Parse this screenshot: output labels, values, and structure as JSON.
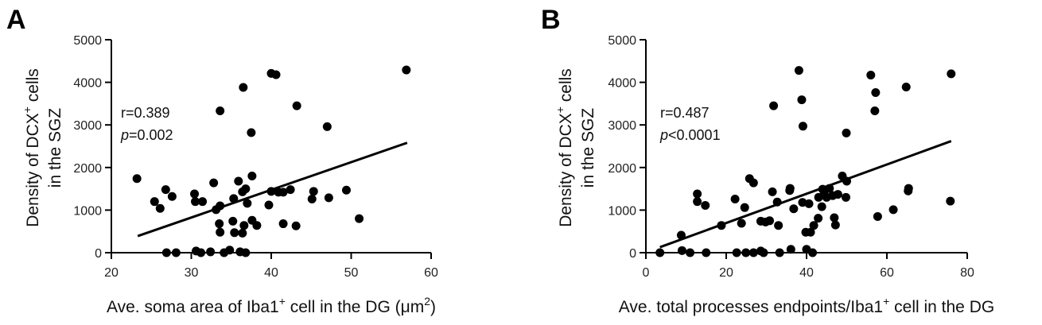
{
  "chart_data": [
    {
      "type": "scatter",
      "panel_label": "A",
      "xlabel_main": "Ave. soma area of Iba1",
      "xlabel_sup": "+",
      "xlabel_rest": " cell in the DG (μm",
      "xlabel_sup2": "2",
      "xlabel_end": ")",
      "ylabel_line1_main": "Density of DCX",
      "ylabel_line1_sup": "+",
      "ylabel_line1_rest": " cells",
      "ylabel_line2": "in the SGZ",
      "xlim": [
        20,
        60
      ],
      "ylim": [
        0,
        5000
      ],
      "xticks": [
        20,
        30,
        40,
        50,
        60
      ],
      "yticks": [
        0,
        1000,
        2000,
        3000,
        4000,
        5000
      ],
      "stat_r": "r=0.389",
      "stat_p_italic": "p",
      "stat_p_rest": "=0.002",
      "fit_line": {
        "x": [
          23.3,
          57
        ],
        "y": [
          390,
          2580
        ]
      },
      "points": [
        [
          23.2,
          1740
        ],
        [
          25.4,
          1200
        ],
        [
          26.1,
          1040
        ],
        [
          26.8,
          1480
        ],
        [
          27.6,
          1320
        ],
        [
          26.9,
          0
        ],
        [
          28.1,
          0
        ],
        [
          30.4,
          1380
        ],
        [
          30.5,
          1200
        ],
        [
          31.4,
          1200
        ],
        [
          30.6,
          40
        ],
        [
          31.2,
          0
        ],
        [
          32.4,
          20
        ],
        [
          33.1,
          1010
        ],
        [
          32.8,
          1640
        ],
        [
          33.6,
          1100
        ],
        [
          33.5,
          680
        ],
        [
          33.6,
          480
        ],
        [
          33.6,
          3330
        ],
        [
          34.1,
          0
        ],
        [
          34.8,
          60
        ],
        [
          35.2,
          740
        ],
        [
          35.3,
          1270
        ],
        [
          35.4,
          470
        ],
        [
          35.9,
          1680
        ],
        [
          36.1,
          20
        ],
        [
          36.4,
          1430
        ],
        [
          36.5,
          3880
        ],
        [
          36.8,
          1500
        ],
        [
          36.6,
          640
        ],
        [
          37.0,
          1160
        ],
        [
          36.8,
          0
        ],
        [
          36.4,
          460
        ],
        [
          37.5,
          2820
        ],
        [
          37.6,
          1800
        ],
        [
          37.6,
          760
        ],
        [
          38.2,
          640
        ],
        [
          39.7,
          1120
        ],
        [
          40.0,
          1440
        ],
        [
          40.0,
          4210
        ],
        [
          40.6,
          4180
        ],
        [
          40.9,
          1420
        ],
        [
          41.5,
          1420
        ],
        [
          41.5,
          680
        ],
        [
          42.4,
          1480
        ],
        [
          43.2,
          3450
        ],
        [
          43.1,
          630
        ],
        [
          45.1,
          1260
        ],
        [
          45.3,
          1440
        ],
        [
          47.0,
          2960
        ],
        [
          47.2,
          1290
        ],
        [
          49.4,
          1470
        ],
        [
          51.0,
          800
        ],
        [
          56.9,
          4290
        ]
      ]
    },
    {
      "type": "scatter",
      "panel_label": "B",
      "xlabel_main": "Ave. total processes endpoints/Iba1",
      "xlabel_sup": "+",
      "xlabel_rest": " cell in the DG",
      "ylabel_line1_main": "Density of DCX",
      "ylabel_line1_sup": "+",
      "ylabel_line1_rest": " cells",
      "ylabel_line2": "in the SGZ",
      "xlim": [
        0,
        80
      ],
      "ylim": [
        0,
        5000
      ],
      "xticks": [
        0,
        20,
        40,
        60,
        80
      ],
      "yticks": [
        0,
        1000,
        2000,
        3000,
        4000,
        5000
      ],
      "stat_r": "r=0.487",
      "stat_p_italic": "p",
      "stat_p_rest": "<0.0001",
      "fit_line": {
        "x": [
          3.5,
          76
        ],
        "y": [
          130,
          2620
        ]
      },
      "points": [
        [
          3.5,
          0
        ],
        [
          8.8,
          410
        ],
        [
          9.0,
          50
        ],
        [
          11.0,
          0
        ],
        [
          12.8,
          1380
        ],
        [
          12.8,
          1200
        ],
        [
          14.8,
          1110
        ],
        [
          15.0,
          0
        ],
        [
          18.8,
          640
        ],
        [
          22.2,
          1260
        ],
        [
          22.6,
          0
        ],
        [
          23.8,
          690
        ],
        [
          24.6,
          1060
        ],
        [
          24.9,
          0
        ],
        [
          25.8,
          1740
        ],
        [
          26.8,
          1640
        ],
        [
          26.8,
          0
        ],
        [
          28.6,
          40
        ],
        [
          28.6,
          740
        ],
        [
          29.3,
          0
        ],
        [
          29.8,
          720
        ],
        [
          30.8,
          750
        ],
        [
          31.5,
          1430
        ],
        [
          31.8,
          3450
        ],
        [
          32.7,
          1190
        ],
        [
          33.0,
          640
        ],
        [
          33.3,
          0
        ],
        [
          35.8,
          1460
        ],
        [
          35.9,
          1510
        ],
        [
          36.1,
          80
        ],
        [
          36.8,
          1030
        ],
        [
          38.1,
          4280
        ],
        [
          38.8,
          3590
        ],
        [
          39.1,
          2970
        ],
        [
          39.0,
          1180
        ],
        [
          39.8,
          480
        ],
        [
          40.0,
          80
        ],
        [
          40.6,
          1150
        ],
        [
          41.0,
          480
        ],
        [
          41.5,
          0
        ],
        [
          41.8,
          640
        ],
        [
          42.9,
          810
        ],
        [
          43.0,
          1300
        ],
        [
          43.8,
          1080
        ],
        [
          44.0,
          1490
        ],
        [
          44.4,
          1370
        ],
        [
          45.0,
          1300
        ],
        [
          45.7,
          1510
        ],
        [
          46.5,
          1340
        ],
        [
          46.9,
          820
        ],
        [
          47.2,
          650
        ],
        [
          47.8,
          1370
        ],
        [
          48.9,
          1800
        ],
        [
          49.8,
          1300
        ],
        [
          50.0,
          1680
        ],
        [
          49.9,
          2810
        ],
        [
          56.0,
          4170
        ],
        [
          57.0,
          3330
        ],
        [
          57.2,
          3760
        ],
        [
          57.7,
          850
        ],
        [
          61.6,
          1010
        ],
        [
          64.8,
          3890
        ],
        [
          65.3,
          1450
        ],
        [
          65.4,
          1510
        ],
        [
          75.8,
          1210
        ],
        [
          76.0,
          4200
        ]
      ]
    }
  ]
}
